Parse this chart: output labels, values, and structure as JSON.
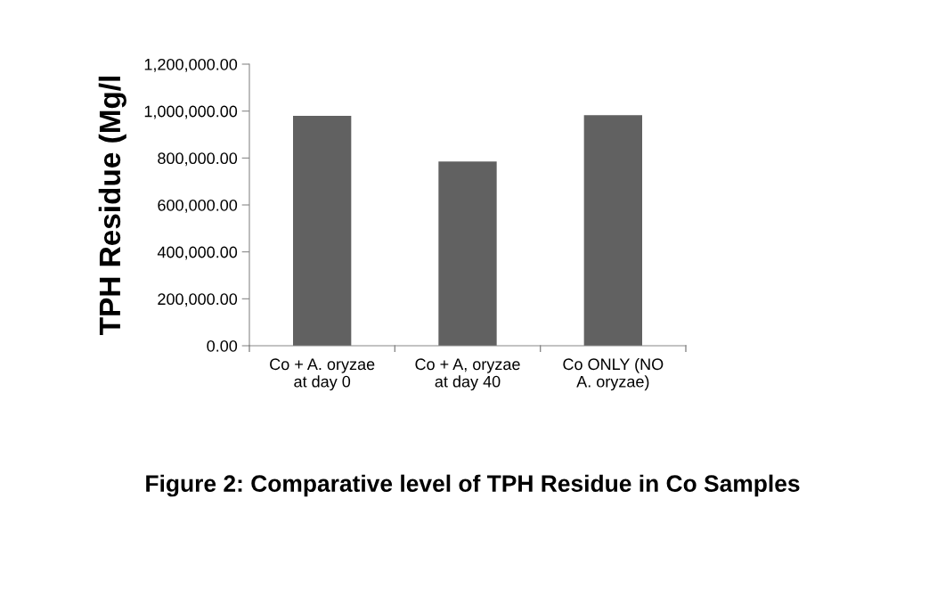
{
  "chart_data": {
    "type": "bar",
    "title": "Figure 2: Comparative level of TPH Residue in Co Samples",
    "ylabel": "TPH Residue (Mg/l",
    "categories": [
      "Co + A. oryzae\nat day 0",
      "Co + A, oryzae\nat day 40",
      "Co ONLY (NO\nA. oryzae)"
    ],
    "values": [
      980000,
      785000,
      983000
    ],
    "color": "#616161",
    "ylim": [
      0,
      1200000
    ],
    "yticks": [
      {
        "value": 0,
        "label": "0.00"
      },
      {
        "value": 200000,
        "label": "200,000.00"
      },
      {
        "value": 400000,
        "label": "400,000.00"
      },
      {
        "value": 600000,
        "label": "600,000.00"
      },
      {
        "value": 800000,
        "label": "800,000.00"
      },
      {
        "value": 1000000,
        "label": "1,000,000.00"
      },
      {
        "value": 1200000,
        "label": "1,200,000.00"
      }
    ],
    "grid": false,
    "legend": false
  }
}
